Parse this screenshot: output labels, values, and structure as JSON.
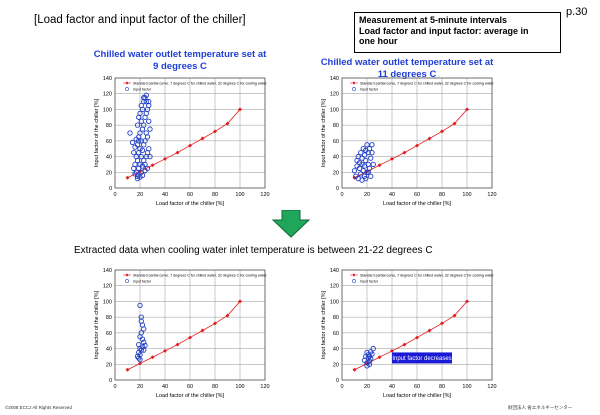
{
  "page": {
    "title": "[Load factor and input factor of the chiller]",
    "page_number": "p.30",
    "note_lines": [
      "Measurement at 5-minute intervals",
      "Load factor and input factor: average in",
      "one hour"
    ],
    "mid_caption": "Extracted data when cooling water inlet temperature is between 21-22 degrees C",
    "footer_left": "©2008  ECCJ All Rights Reserved",
    "footer_right": "財団法人 省エネルギーセンター",
    "arrow_color": "#1fa65a"
  },
  "chart_titles": {
    "c1": [
      "Chilled water outlet temperature set at",
      "9 degrees C"
    ],
    "c2": [
      "Chilled water outlet temperature set at",
      "11 degrees C"
    ]
  },
  "chart_data": [
    {
      "type": "scatter",
      "xlabel": "Load factor of the chiller [%]",
      "ylabel": "Input factor of the chiller [%]",
      "xlim": [
        0,
        120
      ],
      "ylim": [
        0,
        140
      ],
      "xticks": [
        0,
        20,
        40,
        60,
        80,
        100,
        120
      ],
      "yticks": [
        0,
        20,
        40,
        60,
        80,
        100,
        120,
        140
      ],
      "legend": [
        "Standard partial curve, 7 degrees C for chilled water, 32 degrees C for cooling water",
        "Input factor"
      ],
      "series": [
        {
          "name": "Standard partial curve, 7 degrees C for chilled water, 32 degrees C for cooling water",
          "color": "#e02020",
          "marker": "diamond",
          "x": [
            10,
            20,
            30,
            40,
            50,
            60,
            70,
            80,
            90,
            100
          ],
          "y": [
            13,
            21,
            29,
            37,
            45,
            54,
            63,
            72,
            82,
            100
          ]
        },
        {
          "name": "Input factor",
          "color": "#1e3cc8",
          "marker": "circle",
          "x": [
            12,
            14,
            15,
            15,
            16,
            16,
            17,
            17,
            17,
            18,
            18,
            18,
            18,
            19,
            19,
            19,
            19,
            20,
            20,
            20,
            20,
            21,
            21,
            21,
            21,
            22,
            22,
            22,
            22,
            23,
            23,
            23,
            23,
            24,
            24,
            24,
            24,
            25,
            25,
            25,
            25,
            26,
            26,
            26,
            27,
            27,
            27,
            28,
            28,
            16,
            20,
            22,
            24,
            26,
            18,
            21,
            23,
            25,
            19,
            27
          ],
          "y": [
            70,
            58,
            25,
            45,
            30,
            52,
            20,
            40,
            62,
            15,
            35,
            55,
            80,
            25,
            45,
            65,
            90,
            30,
            50,
            70,
            95,
            20,
            40,
            60,
            85,
            28,
            48,
            75,
            100,
            35,
            55,
            80,
            110,
            30,
            60,
            90,
            115,
            40,
            70,
            95,
            110,
            45,
            65,
            100,
            50,
            85,
            105,
            40,
            75,
            18,
            14,
            16,
            22,
            25,
            12,
            105,
            115,
            118,
            60,
            110
          ]
        }
      ]
    },
    {
      "type": "scatter",
      "xlabel": "Load factor of the chiller [%]",
      "ylabel": "Input factor of the chiller [%]",
      "xlim": [
        0,
        120
      ],
      "ylim": [
        0,
        140
      ],
      "xticks": [
        0,
        20,
        40,
        60,
        80,
        100,
        120
      ],
      "yticks": [
        0,
        20,
        40,
        60,
        80,
        100,
        120,
        140
      ],
      "legend": [
        "Standard partial curve, 7 degrees C for chilled water, 32 degrees C for cooling water",
        "Input factor"
      ],
      "series": [
        {
          "name": "Standard partial curve, 7 degrees C for chilled water, 32 degrees C for cooling water",
          "color": "#e02020",
          "marker": "diamond",
          "x": [
            10,
            20,
            30,
            40,
            50,
            60,
            70,
            80,
            90,
            100
          ],
          "y": [
            13,
            21,
            29,
            37,
            45,
            54,
            63,
            72,
            82,
            100
          ]
        },
        {
          "name": "Input factor",
          "color": "#1e3cc8",
          "marker": "circle",
          "x": [
            10,
            11,
            12,
            12,
            13,
            13,
            14,
            14,
            15,
            15,
            16,
            16,
            17,
            17,
            18,
            18,
            18,
            19,
            19,
            20,
            20,
            21,
            21,
            22,
            22,
            23,
            23,
            24,
            24,
            25,
            16,
            19,
            21
          ],
          "y": [
            22,
            15,
            28,
            35,
            12,
            40,
            25,
            32,
            18,
            45,
            30,
            38,
            22,
            50,
            15,
            28,
            42,
            35,
            48,
            20,
            55,
            30,
            45,
            25,
            50,
            38,
            15,
            45,
            55,
            30,
            10,
            12,
            20
          ]
        }
      ]
    },
    {
      "type": "scatter",
      "xlabel": "Load factor of the chiller [%]",
      "ylabel": "Input factor of the chiller [%]",
      "xlim": [
        0,
        120
      ],
      "ylim": [
        0,
        140
      ],
      "xticks": [
        0,
        20,
        40,
        60,
        80,
        100,
        120
      ],
      "yticks": [
        0,
        20,
        40,
        60,
        80,
        100,
        120,
        140
      ],
      "legend": [
        "Standard partial curve, 7 degrees C for chilled water, 32 degrees C for cooling water",
        "Input factor"
      ],
      "series": [
        {
          "name": "Standard partial curve, 7 degrees C for chilled water, 32 degrees C for cooling water",
          "color": "#e02020",
          "marker": "diamond",
          "x": [
            10,
            20,
            30,
            40,
            50,
            60,
            70,
            80,
            90,
            100
          ],
          "y": [
            13,
            21,
            29,
            37,
            45,
            54,
            63,
            72,
            82,
            100
          ]
        },
        {
          "name": "Input factor",
          "color": "#1e3cc8",
          "marker": "circle",
          "x": [
            18,
            19,
            19,
            20,
            20,
            20,
            21,
            21,
            21,
            22,
            22,
            23,
            23,
            20,
            22,
            21,
            19,
            23,
            24,
            20
          ],
          "y": [
            30,
            35,
            45,
            40,
            55,
            95,
            38,
            60,
            75,
            42,
            70,
            48,
            65,
            32,
            52,
            80,
            28,
            38,
            44,
            26
          ]
        }
      ]
    },
    {
      "type": "scatter",
      "xlabel": "Load factor of the chiller [%]",
      "ylabel": "Input factor of the chiller [%]",
      "xlim": [
        0,
        120
      ],
      "ylim": [
        0,
        140
      ],
      "xticks": [
        0,
        20,
        40,
        60,
        80,
        100,
        120
      ],
      "yticks": [
        0,
        20,
        40,
        60,
        80,
        100,
        120,
        140
      ],
      "legend": [
        "Standard partial curve, 7 degrees C for chilled water, 32 degrees C for cooling water",
        "Input factor"
      ],
      "annotation": "Input factor decreases",
      "series": [
        {
          "name": "Standard partial curve, 7 degrees C for chilled water, 32 degrees C for cooling water",
          "color": "#e02020",
          "marker": "diamond",
          "x": [
            10,
            20,
            30,
            40,
            50,
            60,
            70,
            80,
            90,
            100
          ],
          "y": [
            13,
            21,
            29,
            37,
            45,
            54,
            63,
            72,
            82,
            100
          ]
        },
        {
          "name": "Input factor",
          "color": "#1e3cc8",
          "marker": "circle",
          "x": [
            18,
            19,
            20,
            20,
            21,
            21,
            22,
            22,
            23,
            23,
            24,
            25,
            20,
            22
          ],
          "y": [
            25,
            30,
            22,
            35,
            28,
            32,
            24,
            30,
            27,
            36,
            33,
            40,
            18,
            20
          ]
        }
      ]
    }
  ]
}
